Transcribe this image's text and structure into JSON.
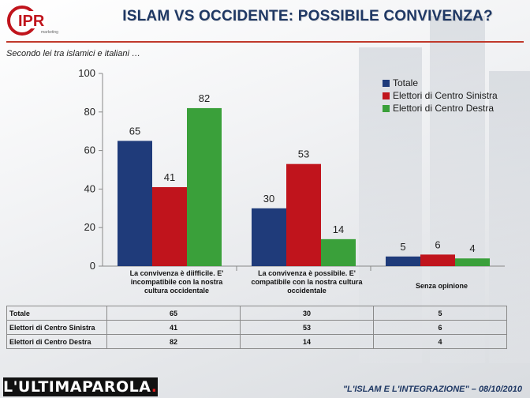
{
  "header": {
    "logo_text": "IPR",
    "logo_subtext": "marketing",
    "title": "ISLAM VS OCCIDENTE: POSSIBILE CONVIVENZA?",
    "subtitle": "Secondo lei tra islamici e italiani …"
  },
  "colors": {
    "totale": "#1f3b7a",
    "centro_sinistra": "#c0141c",
    "centro_destra": "#3aa03a",
    "title": "#1f3864"
  },
  "chart_data": {
    "type": "bar",
    "title": "",
    "xlabel": "",
    "ylabel": "",
    "ylim": [
      0,
      100
    ],
    "yticks": [
      0,
      20,
      40,
      60,
      80,
      100
    ],
    "grid": false,
    "legend_position": "top-right",
    "categories": [
      "La convivenza è diifficile. E' incompatibile con la nostra cultura occidentale",
      "La convivenza è possibile. E' compatibile con la nostra cultura occidentale",
      "Senza opinione"
    ],
    "series": [
      {
        "name": "Totale",
        "values": [
          65,
          30,
          5
        ]
      },
      {
        "name": "Elettori di Centro Sinistra",
        "values": [
          41,
          53,
          6
        ]
      },
      {
        "name": "Elettori di Centro Destra",
        "values": [
          82,
          14,
          4
        ]
      }
    ]
  },
  "table": {
    "rows": [
      {
        "label": "Totale",
        "values": [
          "65",
          "30",
          "5"
        ]
      },
      {
        "label": "Elettori di Centro Sinistra",
        "values": [
          "41",
          "53",
          "6"
        ]
      },
      {
        "label": "Elettori di Centro Destra",
        "values": [
          "82",
          "14",
          "4"
        ]
      }
    ]
  },
  "footer": {
    "brand_text": "L'ULTIMAPAROLA",
    "brand_dot": ".",
    "caption": "\"L'ISLAM E L'INTEGRAZIONE\" – 08/10/2010"
  }
}
